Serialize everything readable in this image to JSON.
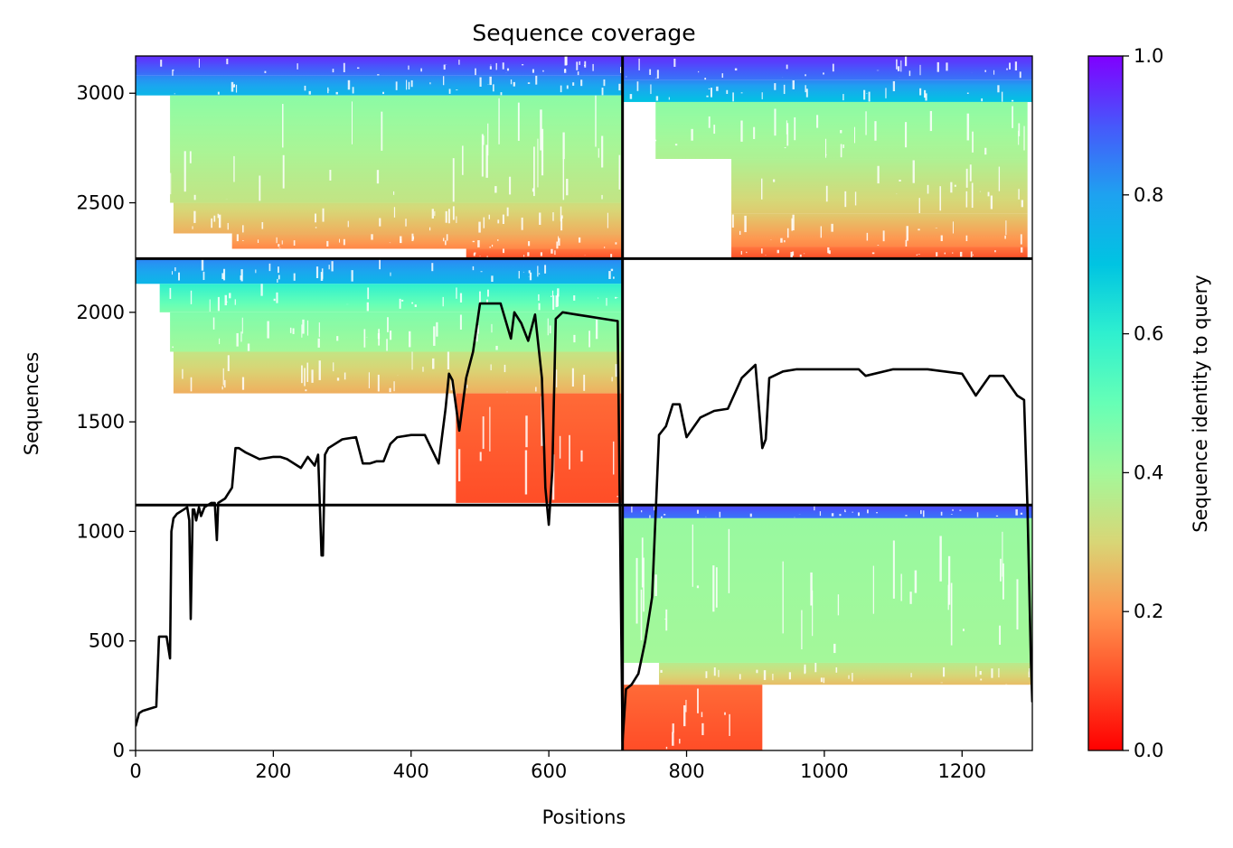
{
  "chart_data": {
    "type": "heatmap",
    "title": "Sequence coverage",
    "xlabel": "Positions",
    "ylabel": "Sequences",
    "xlim": [
      0,
      1302
    ],
    "ylim": [
      0,
      3170
    ],
    "x_ticks": [
      "0",
      "200",
      "400",
      "600",
      "800",
      "1000",
      "1200"
    ],
    "x_tick_values": [
      0,
      200,
      400,
      600,
      800,
      1000,
      1200
    ],
    "y_ticks": [
      "0",
      "500",
      "1000",
      "1500",
      "2000",
      "2500",
      "3000"
    ],
    "y_tick_values": [
      0,
      500,
      1000,
      1500,
      2000,
      2500,
      3000
    ],
    "colorbar": {
      "label": "Sequence identity to query",
      "colormap": "rainbow_r",
      "range": [
        0,
        1
      ],
      "ticks": [
        "0.0",
        "0.2",
        "0.4",
        "0.6",
        "0.8",
        "1.0"
      ],
      "tick_values": [
        0,
        0.2,
        0.4,
        0.6,
        0.8,
        1.0
      ],
      "stops": [
        {
          "v": 0.0,
          "color": "#ff0000"
        },
        {
          "v": 0.1,
          "color": "#ff4d27"
        },
        {
          "v": 0.2,
          "color": "#ff954f"
        },
        {
          "v": 0.3,
          "color": "#d8d676"
        },
        {
          "v": 0.4,
          "color": "#a4f89a"
        },
        {
          "v": 0.5,
          "color": "#66ffb6"
        },
        {
          "v": 0.6,
          "color": "#2ff0cf"
        },
        {
          "v": 0.7,
          "color": "#00c4e2"
        },
        {
          "v": 0.8,
          "color": "#1ea2f0"
        },
        {
          "v": 0.9,
          "color": "#4757fb"
        },
        {
          "v": 1.0,
          "color": "#8000ff"
        }
      ]
    },
    "chain_boundaries": {
      "positions": [
        707
      ],
      "sequences": [
        1120,
        2245
      ]
    },
    "coverage_blocks": [
      {
        "x0": 0,
        "x1": 707,
        "y0": 3080,
        "y1": 3170,
        "identity": 0.86,
        "to": 0.95
      },
      {
        "x0": 0,
        "x1": 707,
        "y0": 2990,
        "y1": 3080,
        "identity": 0.74,
        "to": 0.84
      },
      {
        "x0": 50,
        "x1": 707,
        "y0": 2500,
        "y1": 2990,
        "identity": 0.34,
        "to": 0.44
      },
      {
        "x0": 55,
        "x1": 707,
        "y0": 2360,
        "y1": 2500,
        "identity": 0.24,
        "to": 0.32
      },
      {
        "x0": 140,
        "x1": 707,
        "y0": 2290,
        "y1": 2360,
        "identity": 0.18,
        "to": 0.24
      },
      {
        "x0": 480,
        "x1": 707,
        "y0": 2245,
        "y1": 2290,
        "identity": 0.1,
        "to": 0.16
      },
      {
        "x0": 707,
        "x1": 1302,
        "y0": 3060,
        "y1": 3170,
        "identity": 0.86,
        "to": 0.95
      },
      {
        "x0": 707,
        "x1": 1302,
        "y0": 2960,
        "y1": 3060,
        "identity": 0.7,
        "to": 0.84
      },
      {
        "x0": 755,
        "x1": 1295,
        "y0": 2700,
        "y1": 2960,
        "identity": 0.38,
        "to": 0.44
      },
      {
        "x0": 865,
        "x1": 1295,
        "y0": 2450,
        "y1": 2700,
        "identity": 0.28,
        "to": 0.38
      },
      {
        "x0": 865,
        "x1": 1295,
        "y0": 2300,
        "y1": 2450,
        "identity": 0.18,
        "to": 0.28
      },
      {
        "x0": 865,
        "x1": 1295,
        "y0": 2245,
        "y1": 2300,
        "identity": 0.1,
        "to": 0.16
      },
      {
        "x0": 0,
        "x1": 707,
        "y0": 2130,
        "y1": 2245,
        "identity": 0.74,
        "to": 0.84
      },
      {
        "x0": 35,
        "x1": 707,
        "y0": 2000,
        "y1": 2130,
        "identity": 0.46,
        "to": 0.6
      },
      {
        "x0": 50,
        "x1": 707,
        "y0": 1820,
        "y1": 2000,
        "identity": 0.4,
        "to": 0.46
      },
      {
        "x0": 55,
        "x1": 707,
        "y0": 1630,
        "y1": 1820,
        "identity": 0.24,
        "to": 0.34
      },
      {
        "x0": 465,
        "x1": 707,
        "y0": 1130,
        "y1": 1630,
        "identity": 0.1,
        "to": 0.14
      },
      {
        "x0": 707,
        "x1": 1302,
        "y0": 1060,
        "y1": 1120,
        "identity": 0.86,
        "to": 0.92
      },
      {
        "x0": 707,
        "x1": 1302,
        "y0": 400,
        "y1": 1060,
        "identity": 0.4,
        "to": 0.42
      },
      {
        "x0": 760,
        "x1": 1302,
        "y0": 300,
        "y1": 400,
        "identity": 0.26,
        "to": 0.36
      },
      {
        "x0": 707,
        "x1": 910,
        "y0": 0,
        "y1": 300,
        "identity": 0.1,
        "to": 0.14
      }
    ],
    "coverage_line": {
      "x": [
        0,
        5,
        10,
        30,
        34,
        40,
        45,
        50,
        52,
        55,
        60,
        70,
        75,
        78,
        80,
        83,
        85,
        88,
        92,
        95,
        100,
        110,
        115,
        118,
        120,
        130,
        140,
        145,
        150,
        160,
        180,
        200,
        210,
        220,
        240,
        250,
        260,
        265,
        270,
        272,
        275,
        280,
        300,
        320,
        330,
        340,
        350,
        360,
        370,
        380,
        400,
        420,
        440,
        450,
        455,
        460,
        470,
        480,
        490,
        500,
        530,
        545,
        550,
        560,
        570,
        580,
        590,
        595,
        600,
        605,
        610,
        620,
        640,
        660,
        680,
        700,
        707,
        712,
        720,
        730,
        740,
        750,
        760,
        770,
        780,
        790,
        800,
        820,
        840,
        860,
        880,
        900,
        910,
        915,
        920,
        940,
        960,
        1000,
        1050,
        1060,
        1100,
        1150,
        1200,
        1220,
        1240,
        1260,
        1280,
        1290,
        1295,
        1300,
        1302
      ],
      "y": [
        110,
        170,
        180,
        200,
        520,
        520,
        520,
        420,
        1000,
        1060,
        1080,
        1100,
        1110,
        1050,
        600,
        1100,
        1100,
        1050,
        1110,
        1070,
        1110,
        1130,
        1130,
        960,
        1130,
        1150,
        1200,
        1380,
        1380,
        1360,
        1330,
        1340,
        1340,
        1330,
        1290,
        1340,
        1300,
        1350,
        890,
        890,
        1350,
        1380,
        1420,
        1430,
        1310,
        1310,
        1320,
        1320,
        1400,
        1430,
        1440,
        1440,
        1310,
        1560,
        1720,
        1690,
        1460,
        1700,
        1820,
        2040,
        2040,
        1880,
        2000,
        1950,
        1870,
        1990,
        1700,
        1200,
        1030,
        1280,
        1970,
        2000,
        1990,
        1980,
        1970,
        1960,
        40,
        280,
        300,
        350,
        500,
        700,
        1440,
        1480,
        1580,
        1580,
        1430,
        1520,
        1550,
        1560,
        1700,
        1760,
        1380,
        1420,
        1700,
        1730,
        1740,
        1740,
        1740,
        1710,
        1740,
        1740,
        1720,
        1620,
        1710,
        1710,
        1620,
        1600,
        1100,
        400,
        220
      ]
    }
  }
}
